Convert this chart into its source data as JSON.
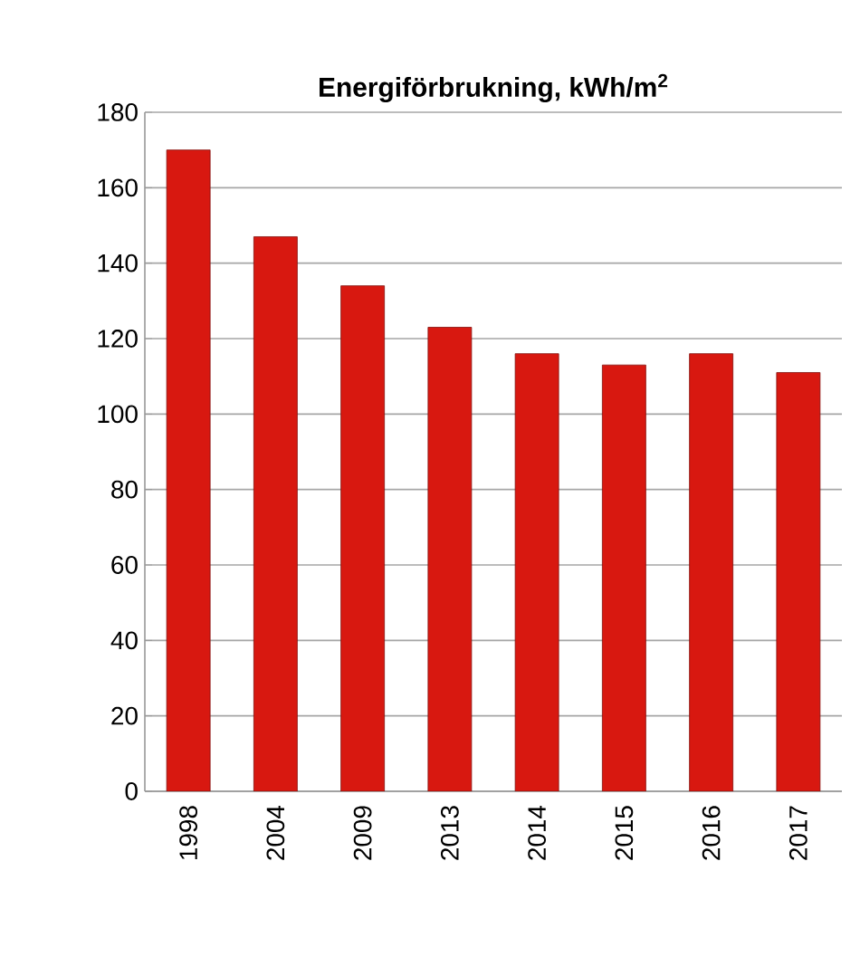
{
  "chart_data": {
    "type": "bar",
    "title": "Energiförbrukning, kWh/m$^{2}$",
    "categories": [
      "1998",
      "2004",
      "2009",
      "2013",
      "2014",
      "2015",
      "2016",
      "2017"
    ],
    "values": [
      170,
      147,
      134,
      123,
      116,
      113,
      116,
      111
    ],
    "color": "#d81810",
    "ylim": [
      0,
      180
    ],
    "yticks": [
      0,
      20,
      40,
      60,
      80,
      100,
      120,
      140,
      160,
      180
    ],
    "grid": "y"
  }
}
